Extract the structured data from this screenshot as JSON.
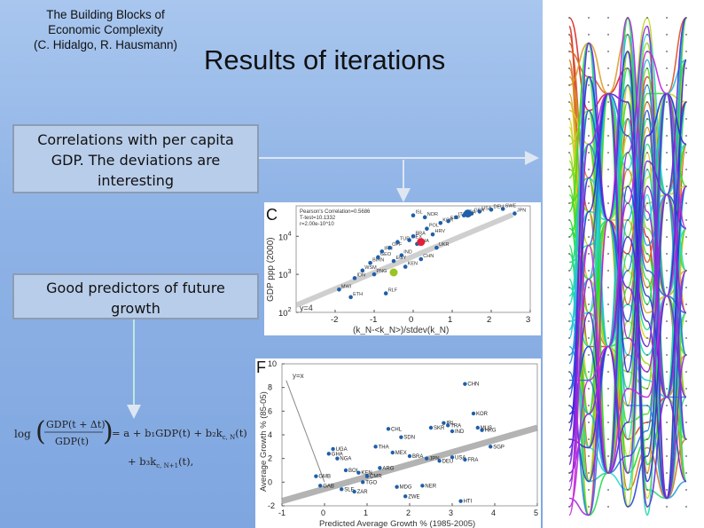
{
  "header": {
    "subtitle_line1": "The Building Blocks of",
    "subtitle_line2": "Economic Complexity",
    "subtitle_line3": "(C. Hidalgo, R. Hausmann)",
    "title": "Results of iterations"
  },
  "callouts": {
    "correlations_line1": "Correlations with per capita",
    "correlations_line2": "GDP. The deviations are",
    "correlations_line3": "interesting",
    "predictors_line1": "Good predictors of future",
    "predictors_line2": "growth"
  },
  "formula": {
    "log": "log",
    "num": "GDP(t + Δt)",
    "den": "GDP(t)",
    "rhs1": "= a + b₁GDP(t) + b₂k",
    "rhs1_sub": "c, N",
    "rhs1_end": "(t)",
    "rhs2": "+ b₃k",
    "rhs2_sub": "c, N+1",
    "rhs2_end": "(t),"
  },
  "colors": {
    "bg": "#8fb3e6",
    "callout_bg": "#b8cdea",
    "point_blue": "#1f5fa8",
    "accent_red": "#e0203a",
    "accent_green": "#9ac420"
  },
  "chart_data": [
    {
      "type": "scatter",
      "panel_label": "C",
      "annotation_top": "Pearson's Correlation=0.5686",
      "annotation_line2": "T-test=10.1332",
      "annotation_line3": "r=2.00e-10^10",
      "annotation_low": "y=4",
      "xlabel": "(k_N-<k_N>)/stdev(k_N)",
      "ylabel": "GDP ppp (2000)",
      "xlim": [
        -3,
        3
      ],
      "ylim_log10": [
        2,
        4.8
      ],
      "xticks": [
        "-2",
        "-1",
        "0",
        "1",
        "2",
        "3"
      ],
      "yticks": [
        "10^2",
        "10^3",
        "10^4"
      ],
      "y_exponents": [
        "2",
        "3",
        "4"
      ],
      "y_base": "10",
      "points": [
        {
          "x": -1.5,
          "y": 2.9,
          "label": "IDN"
        },
        {
          "x": -1.3,
          "y": 3.1,
          "label": "WSM"
        },
        {
          "x": -1.1,
          "y": 3.3,
          "label": "BIRN"
        },
        {
          "x": -1.0,
          "y": 3.0,
          "label": "PNG"
        },
        {
          "x": -0.9,
          "y": 3.45,
          "label": "GEO"
        },
        {
          "x": -0.8,
          "y": 3.6,
          "label": "IRN"
        },
        {
          "x": -0.6,
          "y": 3.7,
          "label": "OPF"
        },
        {
          "x": -0.5,
          "y": 3.35,
          "label": "EGY"
        },
        {
          "x": -0.4,
          "y": 3.85,
          "label": "TUR"
        },
        {
          "x": -0.3,
          "y": 3.5,
          "label": "IND"
        },
        {
          "x": -0.1,
          "y": 3.9,
          "label": "MEX"
        },
        {
          "x": 0.0,
          "y": 4.0,
          "label": "BRA"
        },
        {
          "x": 0.1,
          "y": 3.8,
          "label": "THA"
        },
        {
          "x": 0.2,
          "y": 3.4,
          "label": "CHN"
        },
        {
          "x": 0.35,
          "y": 4.2,
          "label": "POL"
        },
        {
          "x": 0.5,
          "y": 4.05,
          "label": "HRV"
        },
        {
          "x": 0.6,
          "y": 3.7,
          "label": "UKR"
        },
        {
          "x": 0.7,
          "y": 4.35,
          "label": "KOR"
        },
        {
          "x": 0.9,
          "y": 4.4,
          "label": "ESP"
        },
        {
          "x": 1.1,
          "y": 4.5,
          "label": "ITA"
        },
        {
          "x": 1.3,
          "y": 4.55,
          "label": "FRA"
        },
        {
          "x": 1.5,
          "y": 4.6,
          "label": "GBR"
        },
        {
          "x": 1.7,
          "y": 4.65,
          "label": "USA"
        },
        {
          "x": 2.0,
          "y": 4.7,
          "label": "DEU"
        },
        {
          "x": 2.3,
          "y": 4.72,
          "label": "SWE"
        },
        {
          "x": 2.6,
          "y": 4.6,
          "label": "JPN"
        },
        {
          "x": -1.9,
          "y": 2.6,
          "label": "MWI"
        },
        {
          "x": -1.6,
          "y": 2.4,
          "label": "ETH"
        },
        {
          "x": -0.7,
          "y": 2.5,
          "label": "RLF"
        },
        {
          "x": 0.3,
          "y": 4.5,
          "label": "NOR"
        },
        {
          "x": 0.0,
          "y": 4.55,
          "label": "ISL"
        },
        {
          "x": -0.2,
          "y": 3.2,
          "label": "KEN"
        }
      ],
      "highlight_red": {
        "x": 0.2,
        "y": 3.85
      },
      "highlight_green": {
        "x": -0.5,
        "y": 3.05
      },
      "highlight_blue": {
        "x": 1.4,
        "y": 4.6
      }
    },
    {
      "type": "scatter",
      "panel_label": "F",
      "annotation": "y=x",
      "xlabel": "Predicted Average Growth % (1985-2005)",
      "ylabel": "Average Growth % (85-05)",
      "xlim": [
        -1,
        5
      ],
      "ylim": [
        -2,
        10
      ],
      "xticks": [
        "-1",
        "0",
        "1",
        "2",
        "3",
        "4",
        "5"
      ],
      "yticks": [
        "-2",
        "0",
        "2",
        "4",
        "6",
        "8",
        "10"
      ],
      "points": [
        {
          "x": 3.3,
          "y": 8.3,
          "label": "CHN"
        },
        {
          "x": 3.5,
          "y": 5.8,
          "label": "KOR"
        },
        {
          "x": 1.5,
          "y": 4.5,
          "label": "CHL"
        },
        {
          "x": 2.8,
          "y": 5.0,
          "label": "IRL"
        },
        {
          "x": 2.9,
          "y": 4.8,
          "label": "TRA"
        },
        {
          "x": 3.6,
          "y": 4.6,
          "label": "MUS"
        },
        {
          "x": 3.7,
          "y": 4.4,
          "label": "HKG"
        },
        {
          "x": 3.0,
          "y": 4.3,
          "label": "IND"
        },
        {
          "x": 2.5,
          "y": 4.6,
          "label": "SKR"
        },
        {
          "x": 1.8,
          "y": 3.8,
          "label": "SDN"
        },
        {
          "x": 0.2,
          "y": 2.8,
          "label": "UGA"
        },
        {
          "x": 0.1,
          "y": 2.4,
          "label": "GHA"
        },
        {
          "x": 0.3,
          "y": 2.0,
          "label": "NGA"
        },
        {
          "x": 1.2,
          "y": 3.0,
          "label": "THA"
        },
        {
          "x": 1.6,
          "y": 2.5,
          "label": "MEX"
        },
        {
          "x": 2.0,
          "y": 2.2,
          "label": "BRA"
        },
        {
          "x": 2.4,
          "y": 2.0,
          "label": "JPN"
        },
        {
          "x": 2.7,
          "y": 1.8,
          "label": "DEU"
        },
        {
          "x": 3.0,
          "y": 2.1,
          "label": "USA"
        },
        {
          "x": 3.3,
          "y": 1.9,
          "label": "FRA"
        },
        {
          "x": 0.5,
          "y": 1.0,
          "label": "BOL"
        },
        {
          "x": 0.8,
          "y": 0.8,
          "label": "KEN"
        },
        {
          "x": 1.0,
          "y": 0.5,
          "label": "CMR"
        },
        {
          "x": 1.3,
          "y": 1.2,
          "label": "ARG"
        },
        {
          "x": 0.9,
          "y": 0.0,
          "label": "TGO"
        },
        {
          "x": -0.2,
          "y": 0.5,
          "label": "GMB"
        },
        {
          "x": -0.1,
          "y": -0.3,
          "label": "GAB"
        },
        {
          "x": 0.4,
          "y": -0.6,
          "label": "SLE"
        },
        {
          "x": 0.7,
          "y": -0.8,
          "label": "ZAR"
        },
        {
          "x": 1.7,
          "y": -0.4,
          "label": "MDG"
        },
        {
          "x": 2.3,
          "y": -0.3,
          "label": "NER"
        },
        {
          "x": 1.9,
          "y": -1.2,
          "label": "ZWE"
        },
        {
          "x": 3.2,
          "y": -1.6,
          "label": "HTI"
        },
        {
          "x": 3.9,
          "y": 3.0,
          "label": "SGP"
        }
      ]
    }
  ]
}
